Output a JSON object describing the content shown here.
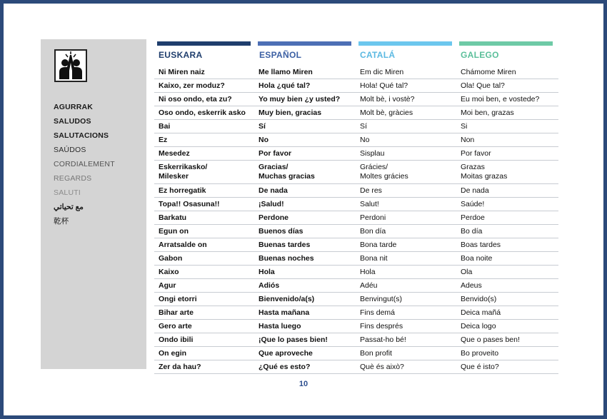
{
  "sidebar": {
    "items": [
      {
        "label": "AGURRAK"
      },
      {
        "label": "SALUDOS"
      },
      {
        "label": "SALUTACIONS"
      },
      {
        "label": "SAÚDOS"
      },
      {
        "label": "CORDIALEMENT"
      },
      {
        "label": "REGARDS"
      },
      {
        "label": "SALUTI"
      },
      {
        "label": "مع تحياتي"
      },
      {
        "label": "乾杯"
      }
    ]
  },
  "columns": [
    {
      "label": "EUSKARA",
      "color": "#1f3e6d",
      "bar_color": "#1f3e6d"
    },
    {
      "label": "ESPAÑOL",
      "color": "#3b5fa3",
      "bar_color": "#4d6fb5"
    },
    {
      "label": "CATALÁ",
      "color": "#5bb9e2",
      "bar_color": "#6cc7ee"
    },
    {
      "label": "GALEGO",
      "color": "#5bbf9a",
      "bar_color": "#6ecaa6"
    }
  ],
  "rows": [
    [
      "Ni Miren naiz",
      "Me llamo Miren",
      "Em dic Miren",
      "Chámome Miren"
    ],
    [
      "Kaixo, zer moduz?",
      "Hola ¿qué tal?",
      "Hola! Qué tal?",
      "Ola! Que tal?"
    ],
    [
      "Ni oso ondo, eta zu?",
      "Yo muy bien ¿y usted?",
      "Molt bè, i vostè?",
      "Eu moi ben, e vostede?"
    ],
    [
      "Oso ondo, eskerrik asko",
      "Muy bien, gracias",
      "Molt bè, gràcies",
      "Moi ben, grazas"
    ],
    [
      "Bai",
      "Sí",
      "Sí",
      "Si"
    ],
    [
      "Ez",
      "No",
      "No",
      "Non"
    ],
    [
      "Mesedez",
      "Por favor",
      "Sisplau",
      "Por favor"
    ],
    [
      "Eskerrikasko/\nMilesker",
      "Gracias/\nMuchas gracias",
      "Grácies/\nMoltes grácies",
      "Grazas\nMoitas grazas"
    ],
    [
      "Ez horregatik",
      "De nada",
      "De res",
      "De nada"
    ],
    [
      "Topa!! Osasuna!!",
      "¡Salud!",
      "Salut!",
      "Saúde!"
    ],
    [
      "Barkatu",
      "Perdone",
      "Perdoni",
      "Perdoe"
    ],
    [
      "Egun on",
      "Buenos días",
      "Bon día",
      "Bo día"
    ],
    [
      "Arratsalde on",
      "Buenas tardes",
      "Bona tarde",
      "Boas tardes"
    ],
    [
      "Gabon",
      "Buenas noches",
      "Bona nit",
      "Boa noite"
    ],
    [
      "Kaixo",
      "Hola",
      "Hola",
      "Ola"
    ],
    [
      "Agur",
      "Adiós",
      "Adéu",
      "Adeus"
    ],
    [
      "Ongi etorri",
      "Bienvenido/a(s)",
      "Benvingut(s)",
      "Benvido(s)"
    ],
    [
      "Bihar arte",
      "Hasta mañana",
      "Fins demá",
      "Deica mañá"
    ],
    [
      "Gero arte",
      "Hasta luego",
      "Fins després",
      "Deica logo"
    ],
    [
      "Ondo ibili",
      "¡Que lo pases bien!",
      "Passat-ho bé!",
      "Que o pases ben!"
    ],
    [
      "On egin",
      "Que aproveche",
      "Bon profit",
      "Bo proveito"
    ],
    [
      "Zer da hau?",
      "¿Qué es esto?",
      "Què és això?",
      "Que é isto?"
    ]
  ],
  "page_number": "10"
}
